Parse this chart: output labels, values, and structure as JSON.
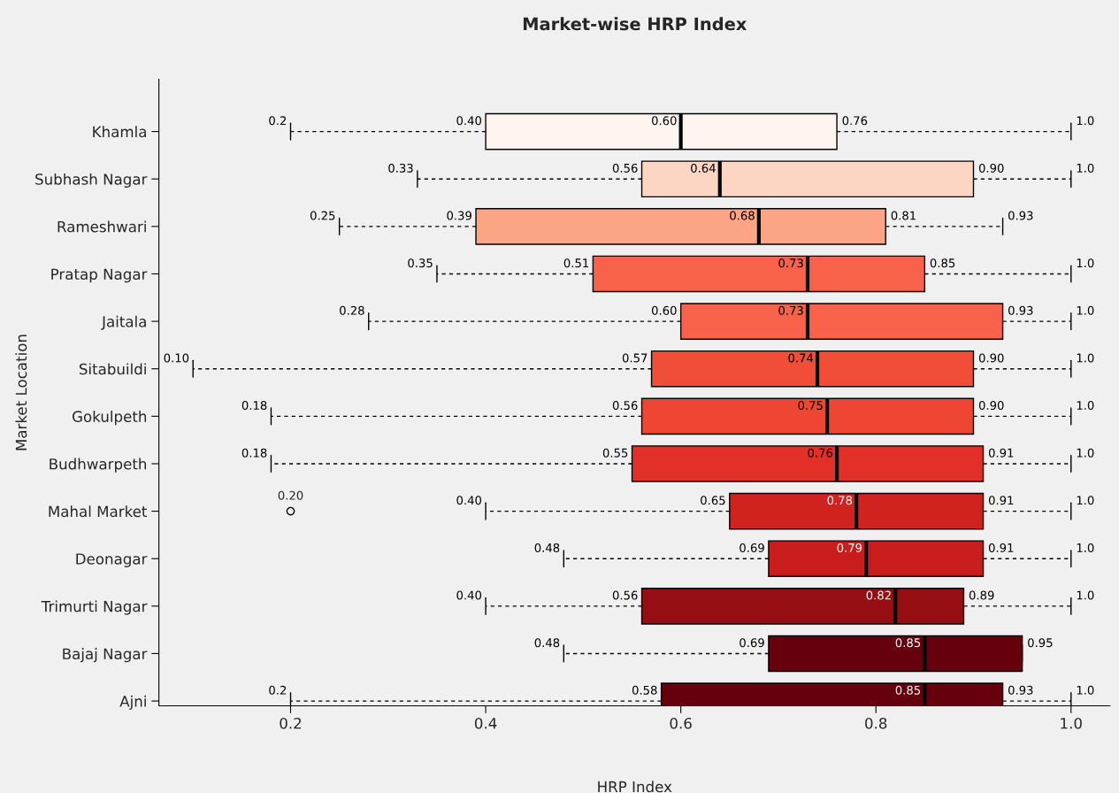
{
  "chart_data": {
    "type": "box",
    "orientation": "horizontal",
    "title": "Market-wise HRP Index",
    "xlabel": "HRP Index",
    "ylabel": "Market Location",
    "categories": [
      "Khamla",
      "Subhash Nagar",
      "Rameshwari",
      "Pratap Nagar",
      "Jaitala",
      "Sitabuildi",
      "Gokulpeth",
      "Budhwarpeth",
      "Mahal Market",
      "Deonagar",
      "Trimurti Nagar",
      "Bajaj Nagar",
      "Ajni"
    ],
    "colors": [
      "#fff5f0",
      "#fcd5c3",
      "#fca486",
      "#f8614a",
      "#f8614a",
      "#f14e37",
      "#ef4533",
      "#e23029",
      "#d0221f",
      "#c91c1d",
      "#960d13",
      "#67000d",
      "#67000d"
    ],
    "boxes": [
      {
        "low": 0.2,
        "q1": 0.4,
        "median": 0.6,
        "q3": 0.76,
        "high": 1.0
      },
      {
        "low": 0.33,
        "q1": 0.56,
        "median": 0.64,
        "q3": 0.9,
        "high": 1.0
      },
      {
        "low": 0.25,
        "q1": 0.39,
        "median": 0.68,
        "q3": 0.81,
        "high": 0.93
      },
      {
        "low": 0.35,
        "q1": 0.51,
        "median": 0.73,
        "q3": 0.85,
        "high": 1.0
      },
      {
        "low": 0.28,
        "q1": 0.6,
        "median": 0.73,
        "q3": 0.93,
        "high": 1.0
      },
      {
        "low": 0.1,
        "q1": 0.57,
        "median": 0.74,
        "q3": 0.9,
        "high": 1.0
      },
      {
        "low": 0.18,
        "q1": 0.56,
        "median": 0.75,
        "q3": 0.9,
        "high": 1.0
      },
      {
        "low": 0.18,
        "q1": 0.55,
        "median": 0.76,
        "q3": 0.91,
        "high": 1.0
      },
      {
        "low": 0.4,
        "q1": 0.65,
        "median": 0.78,
        "q3": 0.91,
        "high": 1.0,
        "outliers": [
          0.2
        ]
      },
      {
        "low": 0.48,
        "q1": 0.69,
        "median": 0.79,
        "q3": 0.91,
        "high": 1.0
      },
      {
        "low": 0.4,
        "q1": 0.56,
        "median": 0.82,
        "q3": 0.89,
        "high": 1.0
      },
      {
        "low": 0.48,
        "q1": 0.69,
        "median": 0.85,
        "q3": 0.95,
        "high": 0.95
      },
      {
        "low": 0.2,
        "q1": 0.58,
        "median": 0.85,
        "q3": 0.93,
        "high": 1.0
      }
    ],
    "xlim": [
      0.065,
      1.04
    ],
    "xticks": [
      {
        "value": 0.2,
        "label": "0.2"
      },
      {
        "value": 0.4,
        "label": "0.4"
      },
      {
        "value": 0.6,
        "label": "0.6"
      },
      {
        "value": 0.8,
        "label": "0.8"
      },
      {
        "value": 1.0,
        "label": "1.0"
      }
    ],
    "grid": false,
    "annotations": [
      {
        "text": "0.2",
        "x": 0.2,
        "y": "Khamla"
      },
      {
        "text": "0.40",
        "x": 0.4,
        "y": "Khamla"
      },
      {
        "text": "0.60",
        "x": 0.6,
        "y": "Khamla"
      },
      {
        "text": "0.76",
        "x": 0.76,
        "y": "Khamla"
      },
      {
        "text": "1.0",
        "x": 1.0,
        "y": "Khamla"
      },
      {
        "text": "0.33",
        "x": 0.33,
        "y": "Subhash Nagar"
      },
      {
        "text": "0.56",
        "x": 0.56,
        "y": "Subhash Nagar"
      },
      {
        "text": "0.64",
        "x": 0.64,
        "y": "Subhash Nagar"
      },
      {
        "text": "0.90",
        "x": 0.9,
        "y": "Subhash Nagar"
      },
      {
        "text": "1.0",
        "x": 1.0,
        "y": "Subhash Nagar"
      },
      {
        "text": "0.25",
        "x": 0.25,
        "y": "Rameshwari"
      },
      {
        "text": "0.39",
        "x": 0.39,
        "y": "Rameshwari"
      },
      {
        "text": "0.68",
        "x": 0.68,
        "y": "Rameshwari"
      },
      {
        "text": "0.81",
        "x": 0.81,
        "y": "Rameshwari"
      },
      {
        "text": "0.93",
        "x": 0.93,
        "y": "Rameshwari"
      },
      {
        "text": "0.35",
        "x": 0.35,
        "y": "Pratap Nagar"
      },
      {
        "text": "0.51",
        "x": 0.51,
        "y": "Pratap Nagar"
      },
      {
        "text": "0.73",
        "x": 0.73,
        "y": "Pratap Nagar"
      },
      {
        "text": "0.85",
        "x": 0.85,
        "y": "Pratap Nagar"
      },
      {
        "text": "1.0",
        "x": 1.0,
        "y": "Pratap Nagar"
      },
      {
        "text": "0.28",
        "x": 0.28,
        "y": "Jaitala"
      },
      {
        "text": "0.60",
        "x": 0.6,
        "y": "Jaitala"
      },
      {
        "text": "0.73",
        "x": 0.73,
        "y": "Jaitala"
      },
      {
        "text": "0.93",
        "x": 0.93,
        "y": "Jaitala"
      },
      {
        "text": "1.0",
        "x": 1.0,
        "y": "Jaitala"
      },
      {
        "text": "0.10",
        "x": 0.1,
        "y": "Sitabuildi"
      },
      {
        "text": "0.57",
        "x": 0.57,
        "y": "Sitabuildi"
      },
      {
        "text": "0.74",
        "x": 0.74,
        "y": "Sitabuildi"
      },
      {
        "text": "0.90",
        "x": 0.9,
        "y": "Sitabuildi"
      },
      {
        "text": "1.0",
        "x": 1.0,
        "y": "Sitabuildi"
      },
      {
        "text": "0.18",
        "x": 0.18,
        "y": "Gokulpeth"
      },
      {
        "text": "0.56",
        "x": 0.56,
        "y": "Gokulpeth"
      },
      {
        "text": "0.75",
        "x": 0.75,
        "y": "Gokulpeth"
      },
      {
        "text": "0.90",
        "x": 0.9,
        "y": "Gokulpeth"
      },
      {
        "text": "1.0",
        "x": 1.0,
        "y": "Gokulpeth"
      },
      {
        "text": "0.18",
        "x": 0.18,
        "y": "Budhwarpeth"
      },
      {
        "text": "0.55",
        "x": 0.55,
        "y": "Budhwarpeth"
      },
      {
        "text": "0.76",
        "x": 0.76,
        "y": "Budhwarpeth"
      },
      {
        "text": "0.91",
        "x": 0.91,
        "y": "Budhwarpeth"
      },
      {
        "text": "1.0",
        "x": 1.0,
        "y": "Budhwarpeth"
      },
      "0.20",
      {
        "text": "0.40",
        "x": 0.4,
        "y": "Mahal Market"
      },
      {
        "text": "0.65",
        "x": 0.65,
        "y": "Mahal Market"
      },
      {
        "text": "0.78",
        "x": 0.78,
        "y": "Mahal Market"
      },
      {
        "text": "0.91",
        "x": 0.91,
        "y": "Mahal Market"
      },
      {
        "text": "1.0",
        "x": 1.0,
        "y": "Mahal Market"
      },
      {
        "text": "0.48",
        "x": 0.48,
        "y": "Deonagar"
      },
      {
        "text": "0.69",
        "x": 0.69,
        "y": "Deonagar"
      },
      {
        "text": "0.79",
        "x": 0.79,
        "y": "Deonagar"
      },
      {
        "text": "0.91",
        "x": 0.91,
        "y": "Deonagar"
      },
      {
        "text": "1.0",
        "x": 1.0,
        "y": "Deonagar"
      },
      {
        "text": "0.40",
        "x": 0.4,
        "y": "Trimurti Nagar"
      },
      {
        "text": "0.56",
        "x": 0.56,
        "y": "Trimurti Nagar"
      },
      {
        "text": "0.82",
        "x": 0.82,
        "y": "Trimurti Nagar"
      },
      {
        "text": "0.89",
        "x": 0.89,
        "y": "Trimurti Nagar"
      },
      {
        "text": "1.0",
        "x": 1.0,
        "y": "Trimurti Nagar"
      },
      {
        "text": "0.48",
        "x": 0.48,
        "y": "Bajaj Nagar"
      },
      {
        "text": "0.69",
        "x": 0.69,
        "y": "Bajaj Nagar"
      },
      {
        "text": "0.85",
        "x": 0.85,
        "y": "Bajaj Nagar"
      },
      {
        "text": "0.95",
        "x": 0.95,
        "y": "Bajaj Nagar"
      },
      {
        "text": "0.2",
        "x": 0.2,
        "y": "Ajni"
      },
      {
        "text": "0.58",
        "x": 0.58,
        "y": "Ajni"
      },
      {
        "text": "0.85",
        "x": 0.85,
        "y": "Ajni"
      },
      {
        "text": "0.93",
        "x": 0.93,
        "y": "Ajni"
      },
      {
        "text": "1.0",
        "x": 1.0,
        "y": "Ajni"
      }
    ]
  }
}
